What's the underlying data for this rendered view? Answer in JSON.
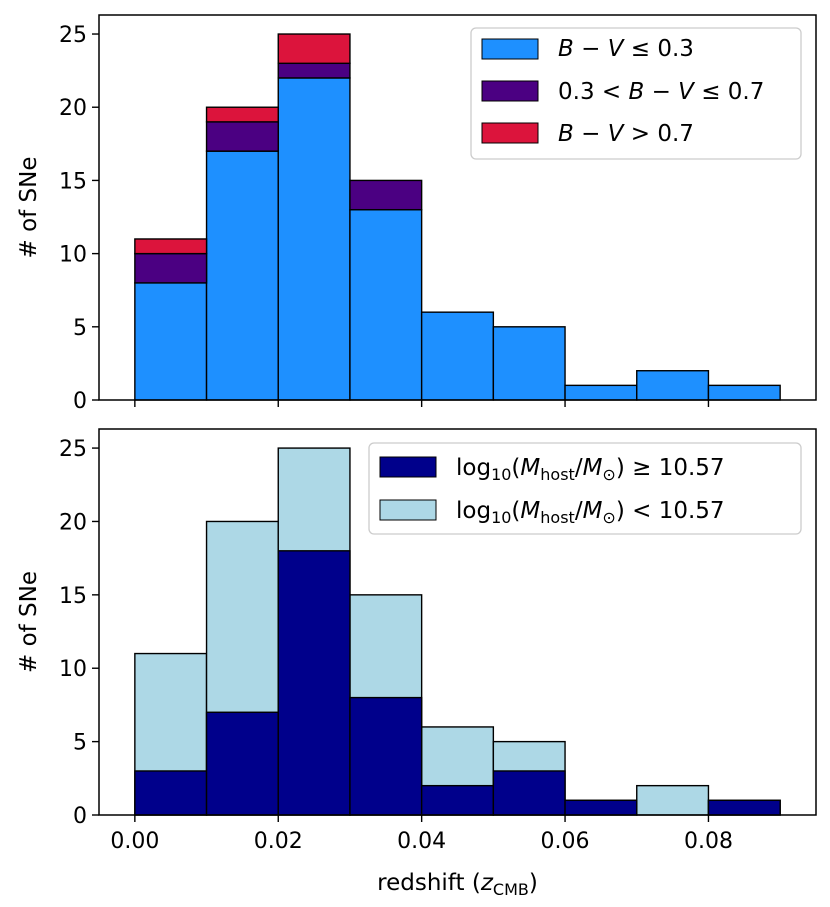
{
  "chart_data": [
    {
      "type": "bar",
      "stacked": true,
      "bin_edges": [
        0.0,
        0.01,
        0.02,
        0.03,
        0.04,
        0.05,
        0.06,
        0.07,
        0.08,
        0.09
      ],
      "series": [
        {
          "name": "B − V ≤ 0.3",
          "color": "#1e90ff",
          "values": [
            8,
            17,
            22,
            13,
            6,
            5,
            1,
            2,
            1
          ]
        },
        {
          "name": "0.3 < B − V ≤ 0.7",
          "color": "#4b0082",
          "values": [
            2,
            2,
            1,
            2,
            0,
            0,
            0,
            0,
            0
          ]
        },
        {
          "name": "B − V > 0.7",
          "color": "#dc143c",
          "values": [
            1,
            1,
            2,
            0,
            0,
            0,
            0,
            0,
            0
          ]
        }
      ],
      "ylabel": "# of SNe",
      "xlabel": "",
      "xlim": [
        -0.005,
        0.095
      ],
      "ylim": [
        0,
        26.3
      ],
      "yticks": [
        0,
        5,
        10,
        15,
        20,
        25
      ],
      "ytick_labels": [
        "0",
        "5",
        "10",
        "15",
        "20",
        "25"
      ],
      "xticks": [
        0.0,
        0.02,
        0.04,
        0.06,
        0.08
      ],
      "legend": {
        "position": "top-right",
        "entries": [
          {
            "parts": [
              {
                "t": "B",
                "i": true
              },
              {
                "t": " − ",
                "i": false
              },
              {
                "t": "V",
                "i": true
              },
              {
                "t": " ≤ 0.3",
                "i": false
              }
            ]
          },
          {
            "parts": [
              {
                "t": "0.3 < ",
                "i": false
              },
              {
                "t": "B",
                "i": true
              },
              {
                "t": " − ",
                "i": false
              },
              {
                "t": "V",
                "i": true
              },
              {
                "t": " ≤ 0.7",
                "i": false
              }
            ]
          },
          {
            "parts": [
              {
                "t": "B",
                "i": true
              },
              {
                "t": " − ",
                "i": false
              },
              {
                "t": "V",
                "i": true
              },
              {
                "t": " > 0.7",
                "i": false
              }
            ]
          }
        ]
      }
    },
    {
      "type": "bar",
      "stacked": false,
      "bin_edges": [
        0.0,
        0.01,
        0.02,
        0.03,
        0.04,
        0.05,
        0.06,
        0.07,
        0.08,
        0.09
      ],
      "series": [
        {
          "name": "log10(M_host/M_⊙) < 10.57",
          "color": "#add8e6",
          "values": [
            11,
            20,
            25,
            15,
            6,
            5,
            1,
            2,
            1
          ],
          "role": "total"
        },
        {
          "name": "log10(M_host/M_⊙) ≥ 10.57",
          "color": "#00008b",
          "values": [
            3,
            7,
            18,
            8,
            2,
            3,
            1,
            0,
            1
          ],
          "role": "high-mass"
        }
      ],
      "ylabel": "# of SNe",
      "xlabel": "redshift (z",
      "xlabel_sub": "CMB",
      "xlabel_end": ")",
      "xlim": [
        -0.005,
        0.095
      ],
      "ylim": [
        0,
        26.3
      ],
      "yticks": [
        0,
        5,
        10,
        15,
        20,
        25
      ],
      "ytick_labels": [
        "0",
        "5",
        "10",
        "15",
        "20",
        "25"
      ],
      "xticks": [
        0.0,
        0.02,
        0.04,
        0.06,
        0.08
      ],
      "xtick_labels": [
        "0.00",
        "0.02",
        "0.04",
        "0.06",
        "0.08"
      ],
      "legend": {
        "position": "top-right",
        "entries": [
          {
            "main": "log",
            "sub1": "10",
            "open": "(",
            "M1": "M",
            "sub2": "host",
            "slash": "/",
            "M2": "M",
            "sub3": "⊙",
            "close": ")",
            "rel": " ≥ 10.57"
          },
          {
            "main": "log",
            "sub1": "10",
            "open": "(",
            "M1": "M",
            "sub2": "host",
            "slash": "/",
            "M2": "M",
            "sub3": "⊙",
            "close": ")",
            "rel": " < 10.57"
          }
        ]
      }
    }
  ]
}
